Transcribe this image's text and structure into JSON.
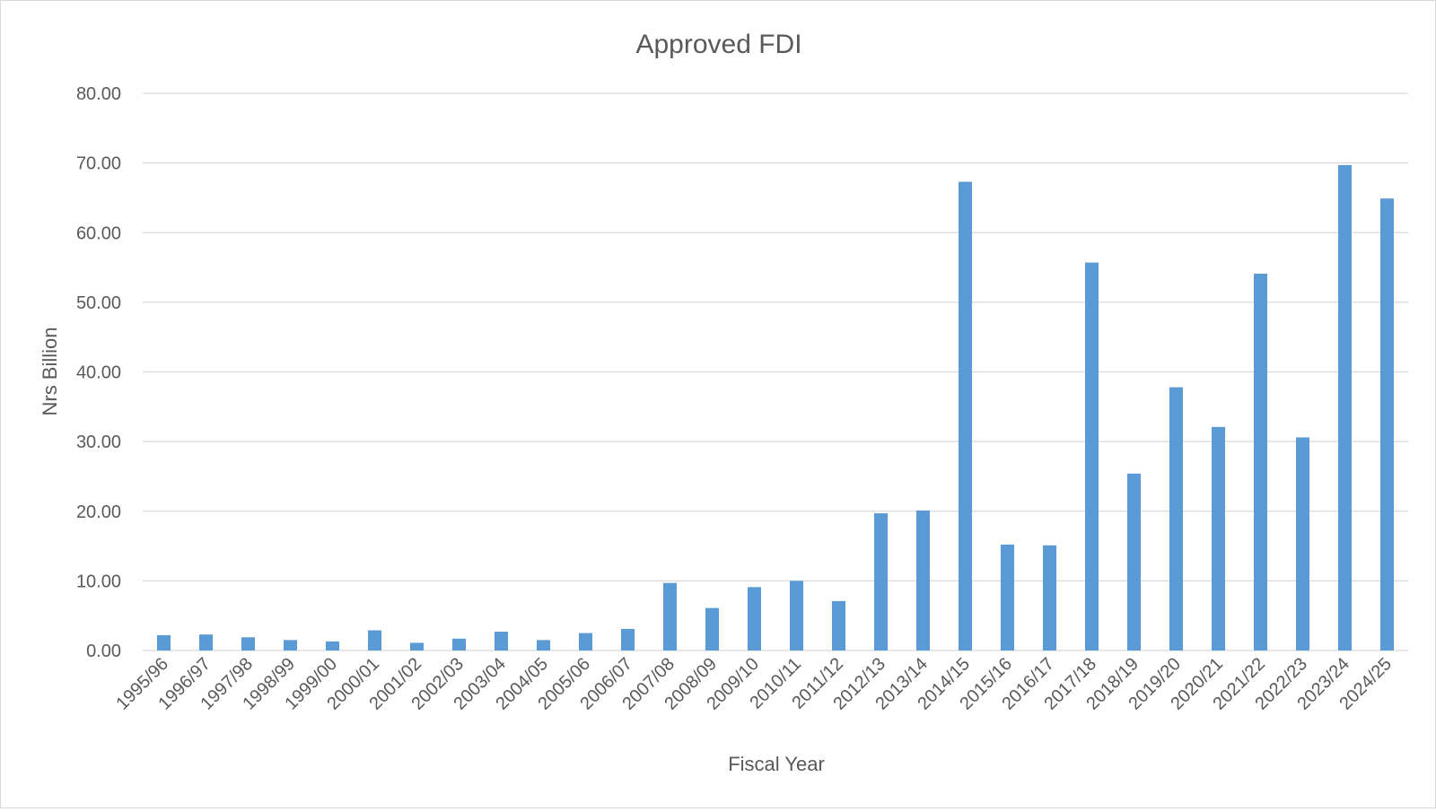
{
  "chart_data": {
    "type": "bar",
    "title": "Approved FDI",
    "xlabel": "Fiscal Year",
    "ylabel": "Nrs Billion",
    "ylim": [
      0,
      80
    ],
    "yticks": [
      "0.00",
      "10.00",
      "20.00",
      "30.00",
      "40.00",
      "50.00",
      "60.00",
      "70.00",
      "80.00"
    ],
    "grid": true,
    "legend": "none",
    "bar_color": "#5b9bd5",
    "categories": [
      "1995/96",
      "1996/97",
      "1997/98",
      "1998/99",
      "1999/00",
      "2000/01",
      "2001/02",
      "2002/03",
      "2003/04",
      "2004/05",
      "2005/06",
      "2006/07",
      "2007/08",
      "2008/09",
      "2009/10",
      "2010/11",
      "2011/12",
      "2012/13",
      "2013/14",
      "2014/15",
      "2015/16",
      "2016/17",
      "2017/18",
      "2018/19",
      "2019/20",
      "2020/21",
      "2021/22",
      "2022/23",
      "2023/24",
      "2024/25"
    ],
    "values": [
      2.2,
      2.3,
      1.9,
      1.5,
      1.3,
      2.9,
      1.1,
      1.7,
      2.7,
      1.5,
      2.5,
      3.1,
      9.7,
      6.1,
      9.1,
      10.0,
      7.1,
      19.7,
      20.1,
      67.3,
      15.2,
      15.1,
      55.7,
      25.4,
      37.8,
      32.1,
      54.1,
      30.6,
      69.7,
      64.9
    ]
  }
}
